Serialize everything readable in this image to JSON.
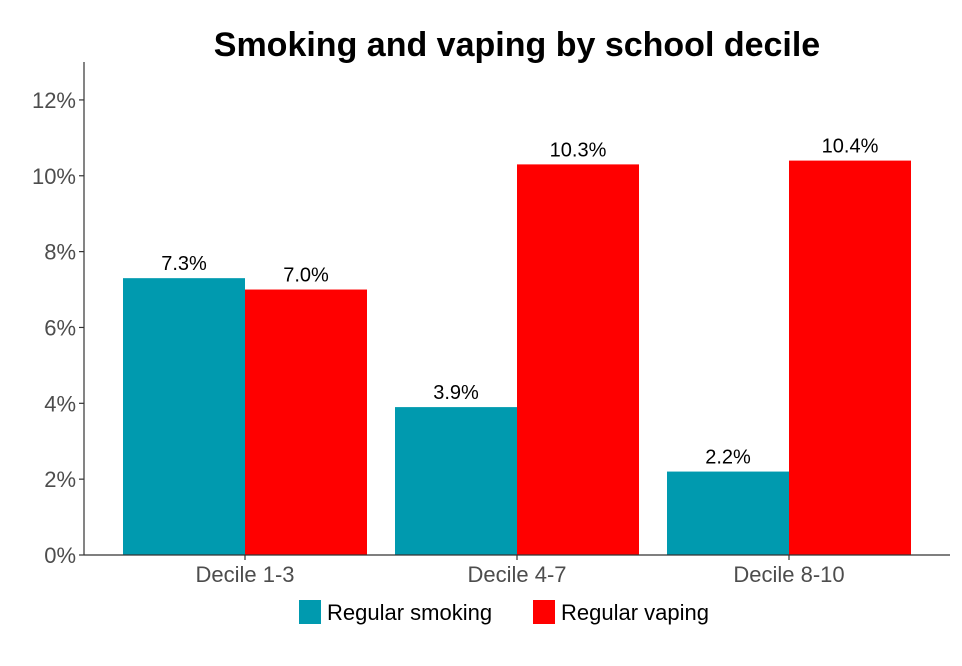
{
  "chart_data": {
    "type": "bar",
    "title": "Smoking and vaping by school decile",
    "xlabel": "",
    "ylabel": "",
    "categories": [
      "Decile 1-3",
      "Decile 4-7",
      "Decile 8-10"
    ],
    "series": [
      {
        "name": "Regular smoking",
        "color": "#009aaf",
        "values": [
          7.3,
          3.9,
          2.2
        ],
        "labels": [
          "7.3%",
          "3.9%",
          "2.2%"
        ]
      },
      {
        "name": "Regular vaping",
        "color": "#ff0000",
        "values": [
          7.0,
          10.3,
          10.4
        ],
        "labels": [
          "7.0%",
          "10.3%",
          "10.4%"
        ]
      }
    ],
    "ylim": [
      0,
      13
    ],
    "yticks": [
      0,
      2,
      4,
      6,
      8,
      10,
      12
    ],
    "ytick_labels": [
      "0%",
      "2%",
      "4%",
      "6%",
      "8%",
      "10%",
      "12%"
    ],
    "grid": false,
    "legend_position": "bottom"
  }
}
